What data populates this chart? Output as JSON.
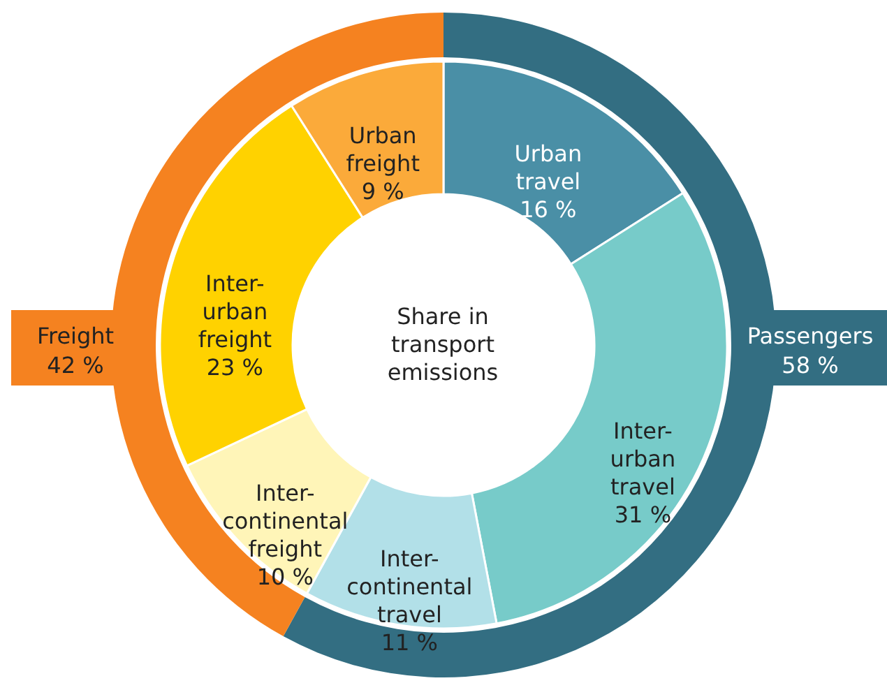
{
  "chart_data": [
    {
      "type": "donut",
      "title": "Share in transport emissions",
      "categories": [
        "Urban travel",
        "Inter-urban travel",
        "Inter-continental travel",
        "Inter-continental freight",
        "Inter-urban freight",
        "Urban freight"
      ],
      "values": [
        16,
        31,
        11,
        10,
        23,
        9
      ],
      "colors": [
        "#4a8fa6",
        "#77cbc9",
        "#b2e0e8",
        "#fff5b8",
        "#ffd200",
        "#fbaa3a"
      ],
      "value_labels": [
        "16 %",
        "31 %",
        "11 %",
        "10 %",
        "23 %",
        "9 %"
      ]
    },
    {
      "type": "donut",
      "categories": [
        "Passengers",
        "Freight"
      ],
      "values": [
        58,
        42
      ],
      "colors": [
        "#336e82",
        "#f58220"
      ],
      "value_labels": [
        "58 %",
        "42 %"
      ]
    }
  ]
}
